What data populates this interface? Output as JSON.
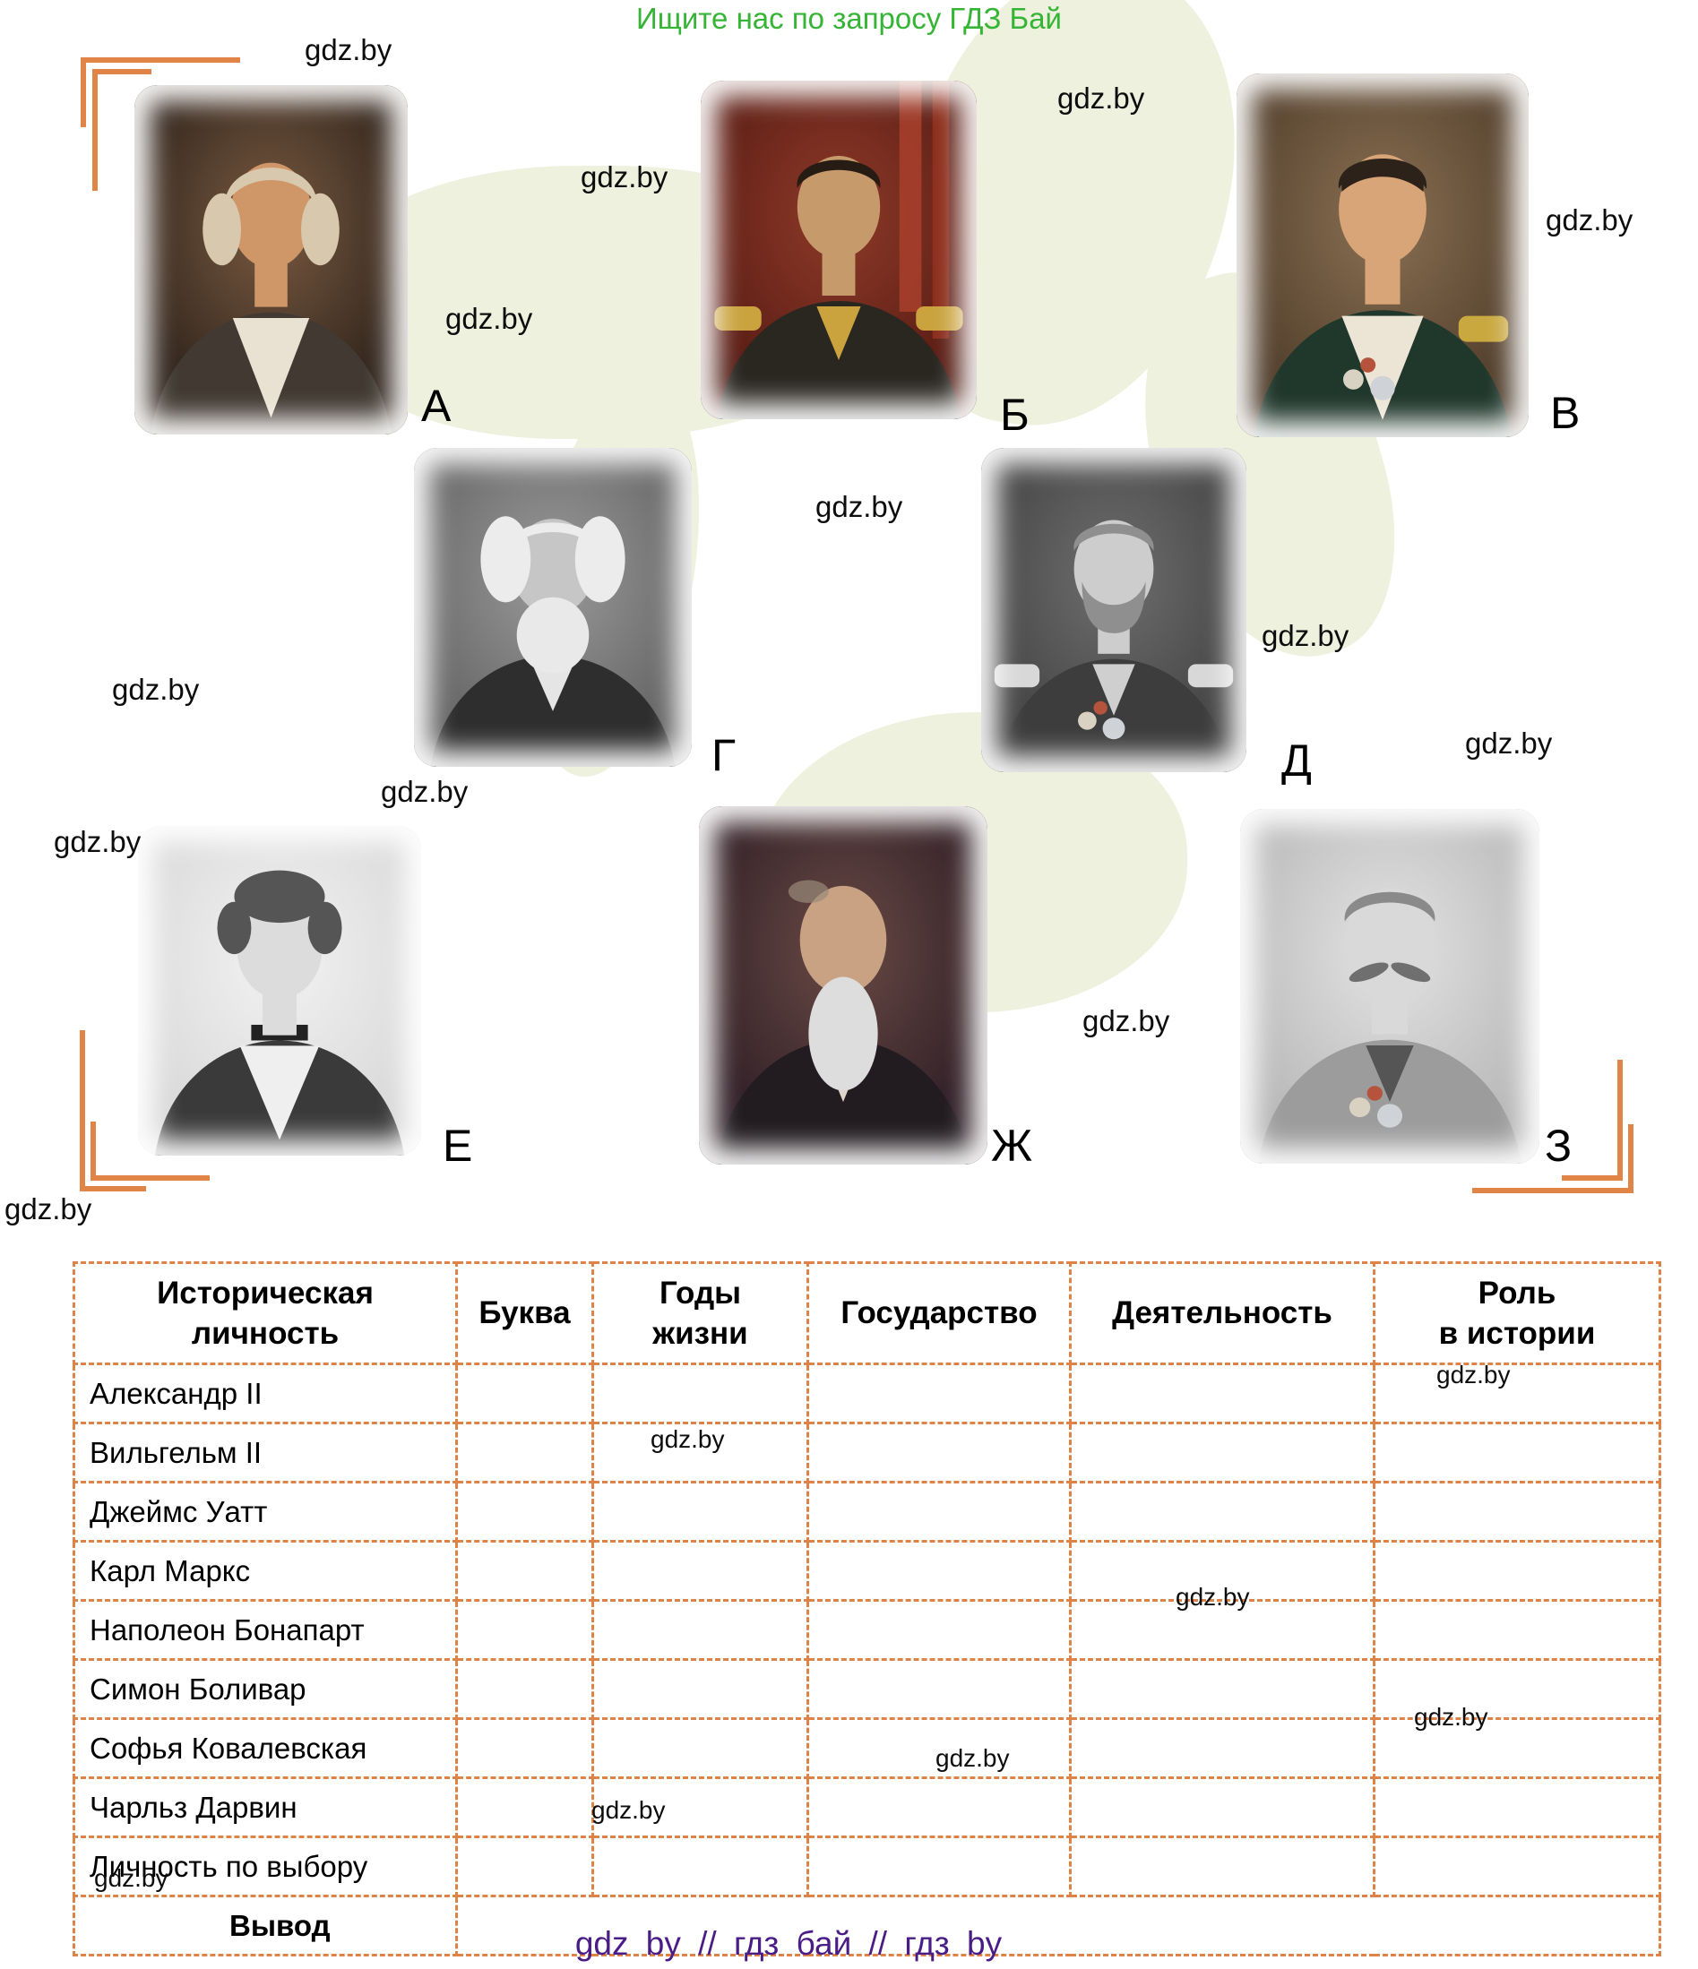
{
  "page": {
    "promo_header": "Ищите нас по запросу ГДЗ Бай",
    "footer_line": "gdz by  //  гдз бай  //  гдз by",
    "watermark_text": "gdz.by"
  },
  "colors": {
    "accent_orange": "#e08448",
    "table_border_orange": "#dd8347",
    "promo_green": "#35b435",
    "footer_purple": "#4a1d86",
    "blob_green": "#eef1de"
  },
  "portraits": [
    {
      "letter": "А"
    },
    {
      "letter": "Б"
    },
    {
      "letter": "В"
    },
    {
      "letter": "Г"
    },
    {
      "letter": "Д"
    },
    {
      "letter": "Е"
    },
    {
      "letter": "Ж"
    },
    {
      "letter": "З"
    }
  ],
  "table": {
    "columns": [
      "Историческая\nличность",
      "Буква",
      "Годы\nжизни",
      "Государство",
      "Деятельность",
      "Роль\nв истории"
    ],
    "rows": [
      {
        "name": "Александр II"
      },
      {
        "name": "Вильгельм II"
      },
      {
        "name": "Джеймс Уатт"
      },
      {
        "name": "Карл Маркс"
      },
      {
        "name": "Наполеон Бонапарт"
      },
      {
        "name": "Симон Боливар"
      },
      {
        "name": "Софья Ковалевская"
      },
      {
        "name": "Чарльз Дарвин"
      },
      {
        "name": "Личность по выбору"
      },
      {
        "name": "Вывод"
      }
    ]
  }
}
